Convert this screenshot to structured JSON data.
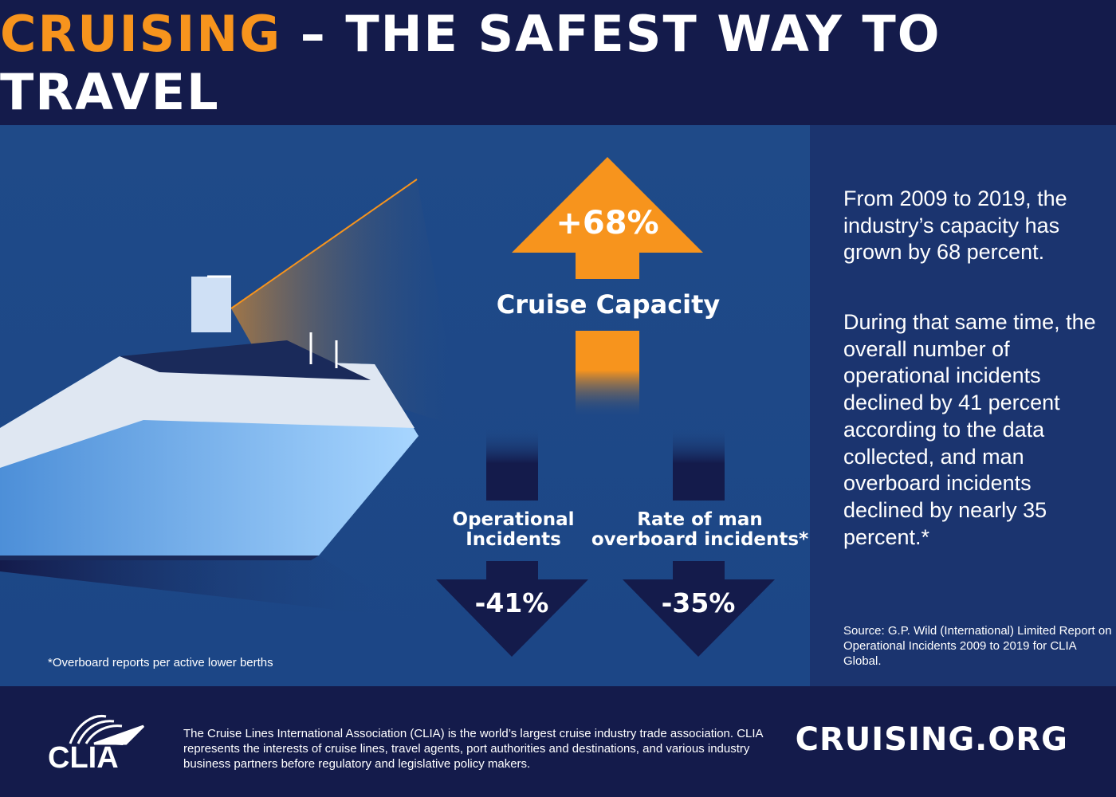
{
  "header": {
    "title_accent": "CRUISING",
    "title_rest": " – THE SAFEST WAY TO TRAVEL"
  },
  "main": {
    "capacity": {
      "value": "+68%",
      "label": "Cruise Capacity"
    },
    "operational": {
      "value": "-41%",
      "label_line1": "Operational",
      "label_line2": "Incidents"
    },
    "overboard": {
      "value": "-35%",
      "label_line1": "Rate of man",
      "label_line2": "overboard incidents*"
    },
    "footnote": "*Overboard reports per active lower berths"
  },
  "side": {
    "paragraph1": "From 2009 to 2019, the industry’s capacity has grown by 68 percent.",
    "paragraph2": "During that same time, the overall number of operational incidents declined by 41 percent according to the data collected, and man overboard incidents declined by nearly 35 percent.*",
    "source": "Source: G.P. Wild (International) Limited Report on Operational Incidents 2009 to 2019 for CLIA Global."
  },
  "footer": {
    "logo_text": "CLIA",
    "about": "The Cruise Lines International Association (CLIA) is the world’s largest cruise industry trade association. CLIA represents the interests of cruise lines, travel agents, port authorities and destinations, and various industry business partners before regulatory and legislative policy makers.",
    "website": "CRUISING.ORG"
  },
  "colors": {
    "accent": "#f7941d",
    "navy": "#141b4b",
    "blue": "#1f4a88",
    "panel": "#1b346f"
  }
}
